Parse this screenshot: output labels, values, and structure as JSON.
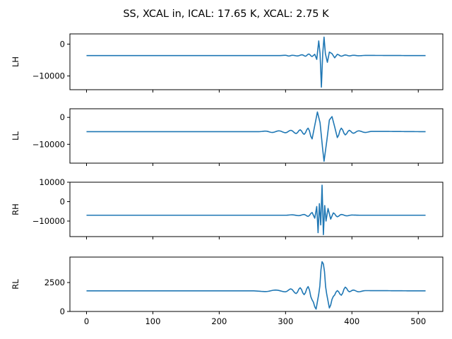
{
  "chart_data": {
    "type": "line",
    "title": "SS, XCAL in, ICAL: 17.65 K, XCAL: 2.75 K",
    "x": {
      "range": [
        -25,
        537
      ],
      "ticks": [
        0,
        100,
        200,
        300,
        400,
        500
      ],
      "tick_labels": [
        "0",
        "100",
        "200",
        "300",
        "400",
        "500"
      ],
      "n_points": 512
    },
    "shared_x": true,
    "grid": false,
    "color": "#1f77b4",
    "panels": [
      {
        "ylabel": "LH",
        "ylim": [
          -14300,
          3200
        ],
        "yticks": [
          0,
          -10000
        ],
        "ytick_labels": [
          "0",
          "−10000"
        ],
        "series": {
          "baseline": -3600,
          "points": [
            [
              0,
              -3600
            ],
            [
              290,
              -3600
            ],
            [
              300,
              -3500
            ],
            [
              305,
              -3750
            ],
            [
              310,
              -3500
            ],
            [
              318,
              -3700
            ],
            [
              325,
              -3350
            ],
            [
              330,
              -3800
            ],
            [
              335,
              -3100
            ],
            [
              340,
              -3900
            ],
            [
              344,
              -3200
            ],
            [
              347,
              -4800
            ],
            [
              350,
              1000
            ],
            [
              352,
              -3000
            ],
            [
              354,
              -13500
            ],
            [
              356,
              -3000
            ],
            [
              358,
              2200
            ],
            [
              360,
              -3000
            ],
            [
              363,
              -5700
            ],
            [
              366,
              -2500
            ],
            [
              370,
              -3000
            ],
            [
              374,
              -4300
            ],
            [
              378,
              -3200
            ],
            [
              384,
              -3800
            ],
            [
              390,
              -3400
            ],
            [
              396,
              -3700
            ],
            [
              402,
              -3500
            ],
            [
              410,
              -3650
            ],
            [
              420,
              -3550
            ],
            [
              511,
              -3600
            ]
          ]
        }
      },
      {
        "ylabel": "LL",
        "ylim": [
          -17000,
          3200
        ],
        "yticks": [
          0,
          -10000
        ],
        "ytick_labels": [
          "0",
          "−10000"
        ],
        "series": {
          "baseline": -5300,
          "points": [
            [
              0,
              -5300
            ],
            [
              260,
              -5300
            ],
            [
              270,
              -5100
            ],
            [
              280,
              -5600
            ],
            [
              290,
              -5000
            ],
            [
              300,
              -5700
            ],
            [
              308,
              -4800
            ],
            [
              316,
              -6000
            ],
            [
              322,
              -4600
            ],
            [
              328,
              -6300
            ],
            [
              334,
              -4000
            ],
            [
              340,
              -8000
            ],
            [
              344,
              -3000
            ],
            [
              348,
              2000
            ],
            [
              352,
              -2000
            ],
            [
              356,
              -12000
            ],
            [
              358,
              -16300
            ],
            [
              362,
              -9000
            ],
            [
              366,
              -1000
            ],
            [
              370,
              300
            ],
            [
              374,
              -3500
            ],
            [
              378,
              -7500
            ],
            [
              384,
              -4000
            ],
            [
              390,
              -6500
            ],
            [
              396,
              -4800
            ],
            [
              402,
              -5900
            ],
            [
              410,
              -5000
            ],
            [
              420,
              -5600
            ],
            [
              430,
              -5200
            ],
            [
              511,
              -5300
            ]
          ]
        }
      },
      {
        "ylabel": "RH",
        "ylim": [
          -18000,
          10000
        ],
        "yticks": [
          10000,
          0,
          -10000
        ],
        "ytick_labels": [
          "10000",
          "0",
          "−10000"
        ],
        "series": {
          "baseline": -7000,
          "points": [
            [
              0,
              -7000
            ],
            [
              300,
              -7000
            ],
            [
              310,
              -6800
            ],
            [
              320,
              -7200
            ],
            [
              328,
              -6600
            ],
            [
              334,
              -7600
            ],
            [
              340,
              -5600
            ],
            [
              344,
              -8500
            ],
            [
              347,
              -2500
            ],
            [
              349,
              -16000
            ],
            [
              351,
              -1000
            ],
            [
              353,
              -12000
            ],
            [
              355,
              8500
            ],
            [
              357,
              -17000
            ],
            [
              359,
              -2000
            ],
            [
              361,
              -10000
            ],
            [
              364,
              -3500
            ],
            [
              368,
              -9000
            ],
            [
              372,
              -5800
            ],
            [
              378,
              -7800
            ],
            [
              384,
              -6600
            ],
            [
              392,
              -7300
            ],
            [
              400,
              -6900
            ],
            [
              411,
              -7000
            ],
            [
              511,
              -7000
            ]
          ]
        }
      },
      {
        "ylabel": "RL",
        "ylim": [
          0,
          4700
        ],
        "yticks": [
          0,
          2500
        ],
        "ytick_labels": [
          "0",
          "2500"
        ],
        "series": {
          "baseline": 1780,
          "points": [
            [
              0,
              1780
            ],
            [
              250,
              1780
            ],
            [
              270,
              1720
            ],
            [
              285,
              1850
            ],
            [
              300,
              1700
            ],
            [
              308,
              1950
            ],
            [
              316,
              1550
            ],
            [
              322,
              2050
            ],
            [
              328,
              1450
            ],
            [
              334,
              2150
            ],
            [
              340,
              1000
            ],
            [
              346,
              200
            ],
            [
              350,
              1500
            ],
            [
              355,
              4300
            ],
            [
              357,
              4100
            ],
            [
              362,
              1500
            ],
            [
              366,
              300
            ],
            [
              372,
              1300
            ],
            [
              378,
              1800
            ],
            [
              384,
              1400
            ],
            [
              390,
              2100
            ],
            [
              396,
              1700
            ],
            [
              402,
              1850
            ],
            [
              410,
              1700
            ],
            [
              420,
              1800
            ],
            [
              511,
              1780
            ]
          ]
        }
      }
    ]
  }
}
